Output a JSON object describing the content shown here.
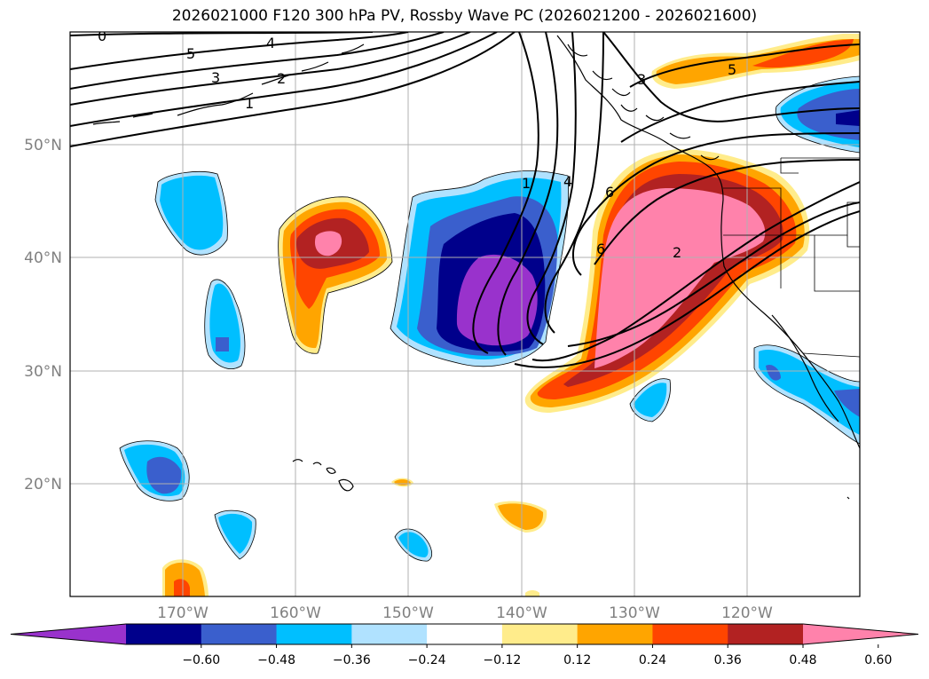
{
  "title": "2026021000 F120 300 hPa PV, Rossby Wave PC (2026021200 - 2026021600)",
  "map": {
    "lat_ticks": [
      "50°N",
      "40°N",
      "30°N",
      "20°N"
    ],
    "lon_ticks": [
      "170°W",
      "160°W",
      "150°W",
      "140°W",
      "130°W",
      "120°W"
    ],
    "grid": true,
    "contour_labels": [
      "0",
      "5",
      "3",
      "2",
      "1",
      "4",
      "5",
      "3",
      "1",
      "4",
      "6",
      "6",
      "2"
    ]
  },
  "colorbar": {
    "levels": [
      "−0.60",
      "−0.48",
      "−0.36",
      "−0.24",
      "−0.12",
      "0.12",
      "0.24",
      "0.36",
      "0.48",
      "0.60"
    ],
    "colors": [
      "#9932cc",
      "#00008b",
      "#3a5fcd",
      "#00bfff",
      "#b0e2ff",
      "#ffffff",
      "#ffec8b",
      "#ffa500",
      "#ff4500",
      "#b22222",
      "#ff82ab"
    ],
    "extend": "both"
  }
}
